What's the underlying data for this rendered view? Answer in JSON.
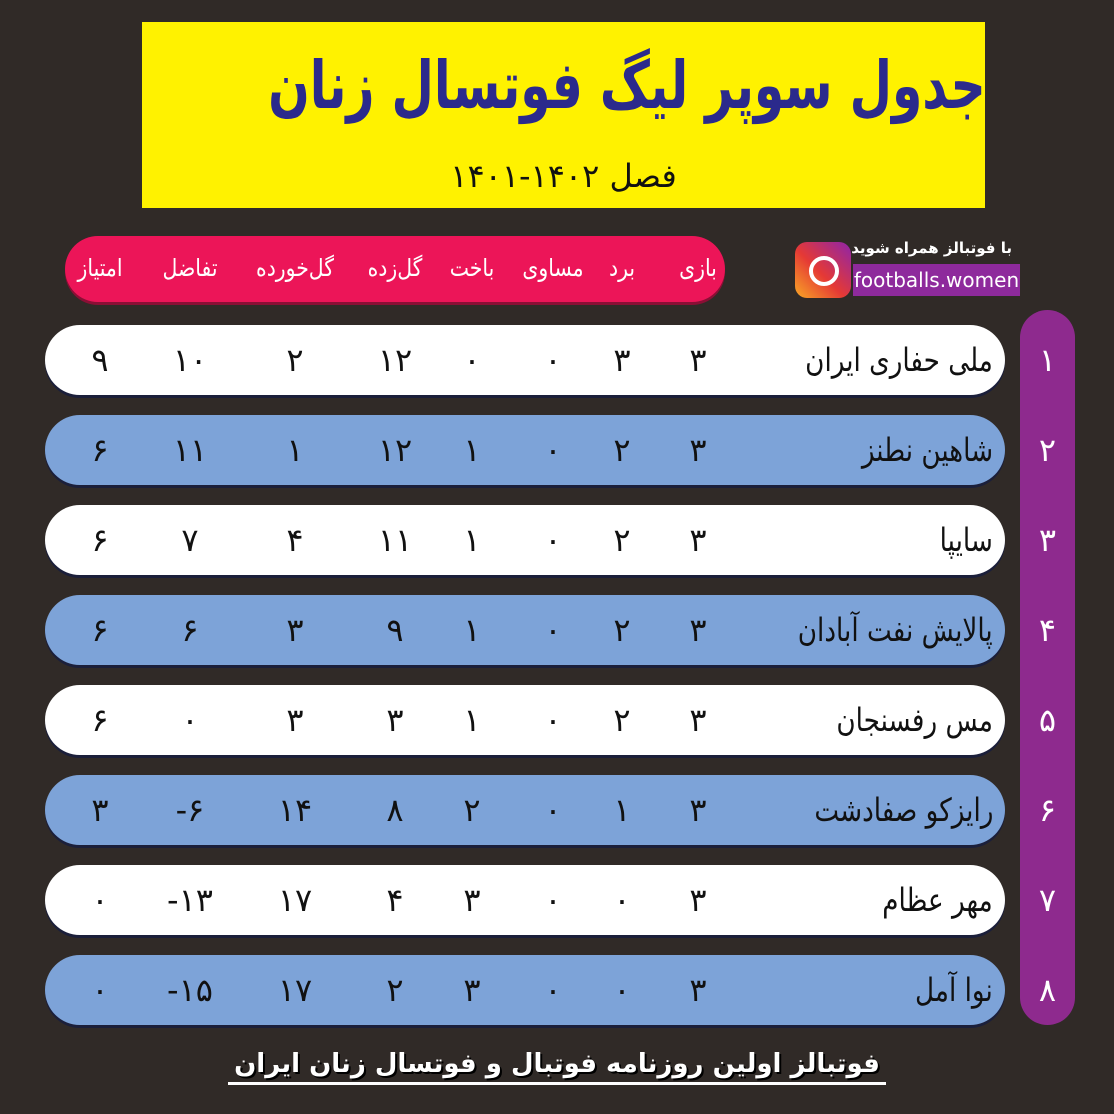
{
  "title": "جدول سوپر لیگ فوتسال زنان",
  "season": "فصل ۱۴۰۲-۱۴۰۱",
  "instagram": {
    "follow": "با فوتبالز همراه شوید",
    "handle": "footballs.women",
    "icon": "instagram-icon"
  },
  "columns": [
    "بازی",
    "برد",
    "مساوی",
    "باخت",
    "گل‌زده",
    "گل‌خورده",
    "تفاضل",
    "امتیاز"
  ],
  "rows": [
    {
      "rank": "۱",
      "team": "ملی حفاری ایران",
      "played": "۳",
      "won": "۳",
      "drawn": "۰",
      "lost": "۰",
      "gf": "۱۲",
      "ga": "۲",
      "gd": "۱۰",
      "pts": "۹"
    },
    {
      "rank": "۲",
      "team": "شاهین نطنز",
      "played": "۳",
      "won": "۲",
      "drawn": "۰",
      "lost": "۱",
      "gf": "۱۲",
      "ga": "۱",
      "gd": "۱۱",
      "pts": "۶"
    },
    {
      "rank": "۳",
      "team": "سایپا",
      "played": "۳",
      "won": "۲",
      "drawn": "۰",
      "lost": "۱",
      "gf": "۱۱",
      "ga": "۴",
      "gd": "۷",
      "pts": "۶"
    },
    {
      "rank": "۴",
      "team": "پالایش نفت آبادان",
      "played": "۳",
      "won": "۲",
      "drawn": "۰",
      "lost": "۱",
      "gf": "۹",
      "ga": "۳",
      "gd": "۶",
      "pts": "۶"
    },
    {
      "rank": "۵",
      "team": "مس رفسنجان",
      "played": "۳",
      "won": "۲",
      "drawn": "۰",
      "lost": "۱",
      "gf": "۳",
      "ga": "۳",
      "gd": "۰",
      "pts": "۶"
    },
    {
      "rank": "۶",
      "team": "رایزکو صفادشت",
      "played": "۳",
      "won": "۱",
      "drawn": "۰",
      "lost": "۲",
      "gf": "۸",
      "ga": "۱۴",
      "gd": "-۶",
      "pts": "۳"
    },
    {
      "rank": "۷",
      "team": "مهر عظام",
      "played": "۳",
      "won": "۰",
      "drawn": "۰",
      "lost": "۳",
      "gf": "۴",
      "ga": "۱۷",
      "gd": "-۱۳",
      "pts": "۰"
    },
    {
      "rank": "۸",
      "team": "نوا آمل",
      "played": "۳",
      "won": "۰",
      "drawn": "۰",
      "lost": "۳",
      "gf": "۲",
      "ga": "۱۷",
      "gd": "-۱۵",
      "pts": "۰"
    }
  ],
  "footer": "فوتبالز اولین روزنامه فوتبال و فوتسال زنان ایران",
  "colors": {
    "background": "#302a27",
    "title_bg": "#fff200",
    "title_text": "#2b2a8c",
    "header_pill": "#ec1558",
    "rank_pill": "#8e2a8e",
    "row_white": "#ffffff",
    "row_blue": "#7da3d8"
  }
}
